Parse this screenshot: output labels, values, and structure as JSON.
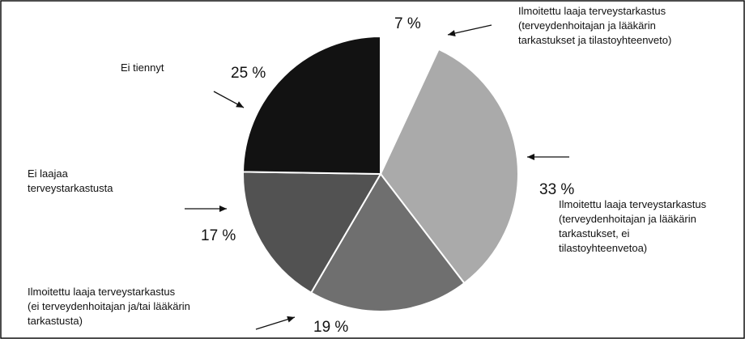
{
  "chart_data": {
    "type": "pie",
    "title": "",
    "categories": [
      "Ilmoitettu laaja terveystarkastus (terveydenhoitajan ja lääkärin tarkastukset ja  tilastoyhteenveto)",
      "Ilmoitettu laaja terveystarkastus (terveydenhoitajan ja lääkärin tarkastukset, ei tilastoyhteenvetoa)",
      "Ilmoitettu laaja terveystarkastus (ei terveydenhoitajan ja/tai lääkärin tarkastusta)",
      "Ei laajaa terveystarkastusta",
      "Ei tiennyt"
    ],
    "values": [
      7,
      33,
      19,
      17,
      25
    ],
    "value_labels": [
      "7 %",
      "33 %",
      "19 %",
      "17 %",
      "25 %"
    ],
    "colors": [
      "#ffffff",
      "#aaaaaa",
      "#6f6f6f",
      "#525252",
      "#121212"
    ],
    "start_angle_deg": 0,
    "direction": "clockwise",
    "legend": "callout labels with arrows",
    "category_label_lines": [
      [
        "Ilmoitettu laaja terveystarkastus",
        "(terveydenhoitajan ja lääkärin",
        "tarkastukset ja  tilastoyhteenveto)"
      ],
      [
        "Ilmoitettu laaja terveystarkastus",
        "(terveydenhoitajan ja lääkärin",
        "tarkastukset, ei",
        "tilastoyhteenvetoa)"
      ],
      [
        "Ilmoitettu laaja terveystarkastus",
        "(ei terveydenhoitajan ja/tai lääkärin",
        "tarkastusta)"
      ],
      [
        "Ei laajaa",
        "terveystarkastusta"
      ],
      [
        "Ei tiennyt"
      ]
    ]
  }
}
